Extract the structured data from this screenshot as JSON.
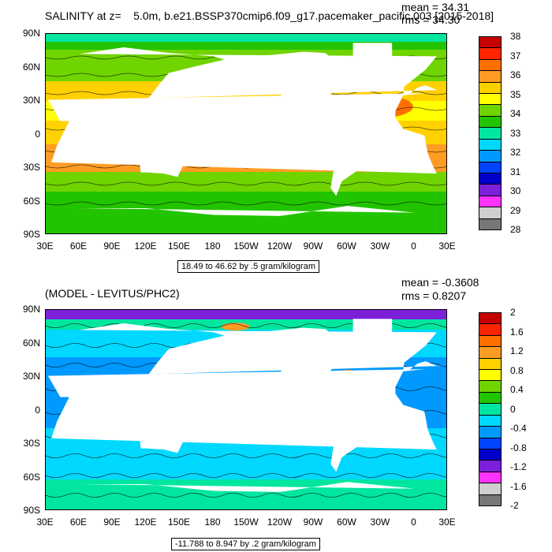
{
  "top": {
    "title": "SALINITY at z=    5.0m, b.e21.BSSP370cmip6.f09_g17.pacemaker_pacific.003 [2015-2018]",
    "mean_label": "mean = 34.31",
    "rms_label": "rms = 34.30",
    "range_label": "18.49 to 46.62 by .5 gram/kilogram",
    "colorbar_labels": [
      "38",
      "37",
      "36",
      "35",
      "34",
      "33",
      "32",
      "31",
      "30",
      "29",
      "28"
    ],
    "colorbar_colors": [
      "#c40000",
      "#ff2400",
      "#ff6f00",
      "#ff9c24",
      "#ffd100",
      "#ffff00",
      "#6fd400",
      "#22c400",
      "#00e6a0",
      "#00d8ff",
      "#0099ff",
      "#0044ff",
      "#0000c8",
      "#7b1fd8",
      "#ff33ff",
      "#cfcfcf",
      "#777777"
    ]
  },
  "bottom": {
    "title": "(MODEL - LEVITUS/PHC2)",
    "mean_label": "mean = -0.3608",
    "rms_label": "rms = 0.8207",
    "range_label": "-11.788 to 8.947 by .2 gram/kilogram",
    "colorbar_labels": [
      "2",
      "1.6",
      "1.2",
      "0.8",
      "0.4",
      "0",
      "-0.4",
      "-0.8",
      "-1.2",
      "-1.6",
      "-2"
    ],
    "colorbar_colors": [
      "#c40000",
      "#ff2400",
      "#ff6f00",
      "#ff9c24",
      "#ffd100",
      "#ffff00",
      "#6fd400",
      "#22c400",
      "#00e6a0",
      "#00d8ff",
      "#0099ff",
      "#0044ff",
      "#0000c8",
      "#7b1fd8",
      "#ff33ff",
      "#cfcfcf",
      "#777777"
    ]
  },
  "lat_labels": [
    "90N",
    "60N",
    "30N",
    "0",
    "30S",
    "60S",
    "90S"
  ],
  "lon_labels": [
    "30E",
    "60E",
    "90E",
    "120E",
    "150E",
    "180",
    "150W",
    "120W",
    "90W",
    "60W",
    "30W",
    "0",
    "30E"
  ],
  "colors": {
    "land": "#ffffff",
    "contour": "#000000"
  }
}
